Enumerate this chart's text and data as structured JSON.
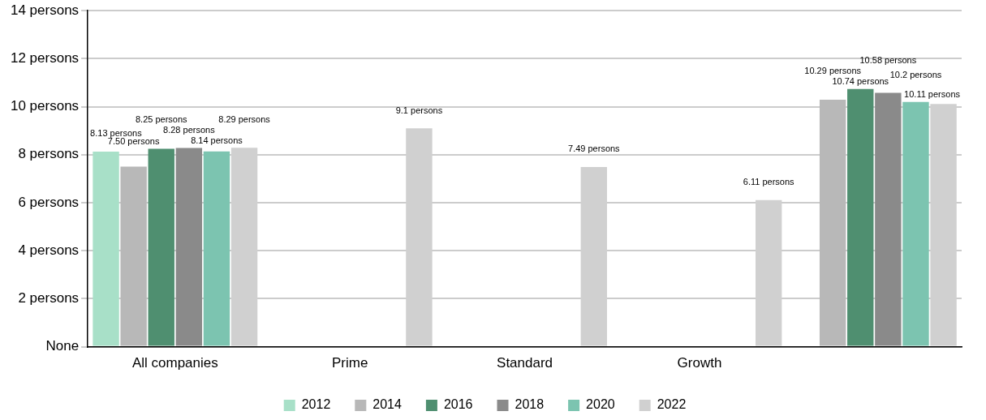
{
  "chart_data": {
    "type": "bar",
    "categories": [
      "All companies",
      "Prime",
      "Standard",
      "Growth",
      null
    ],
    "series": [
      {
        "name": "2012",
        "color": "#a8e0c8",
        "values": [
          8.13,
          null,
          null,
          null,
          null
        ],
        "value_labels": [
          "8.13 persons",
          null,
          null,
          null,
          null
        ]
      },
      {
        "name": "2014",
        "color": "#b8b8b8",
        "values": [
          7.5,
          null,
          null,
          null,
          10.29
        ],
        "value_labels": [
          "7.50 persons",
          null,
          null,
          null,
          "10.29 persons"
        ]
      },
      {
        "name": "2016",
        "color": "#4f8f70",
        "values": [
          8.25,
          null,
          null,
          null,
          10.74
        ],
        "value_labels": [
          "8.25 persons",
          null,
          null,
          null,
          "10.74 persons"
        ]
      },
      {
        "name": "2018",
        "color": "#8a8a8a",
        "values": [
          8.28,
          null,
          null,
          null,
          10.58
        ],
        "value_labels": [
          "8.28 persons",
          null,
          null,
          null,
          "10.58 persons"
        ]
      },
      {
        "name": "2020",
        "color": "#7cc4b0",
        "values": [
          8.14,
          null,
          null,
          null,
          10.2
        ],
        "value_labels": [
          "8.14 persons",
          null,
          null,
          null,
          "10.2 persons"
        ]
      },
      {
        "name": "2022",
        "color": "#d0d0d0",
        "values": [
          8.29,
          9.1,
          7.49,
          6.11,
          10.11
        ],
        "value_labels": [
          "8.29 persons",
          "9.1 persons",
          "7.49 persons",
          "6.11 persons",
          "10.11 persons"
        ]
      }
    ],
    "ylim": [
      0,
      14
    ],
    "yticks": [
      {
        "value": 0,
        "label": "None"
      },
      {
        "value": 2,
        "label": "2 persons"
      },
      {
        "value": 4,
        "label": "4 persons"
      },
      {
        "value": 6,
        "label": "6 persons"
      },
      {
        "value": 8,
        "label": "8 persons"
      },
      {
        "value": 10,
        "label": "10 persons"
      },
      {
        "value": 12,
        "label": "12 persons"
      },
      {
        "value": 14,
        "label": "14 persons"
      }
    ],
    "grid": "y",
    "legend": "bottom"
  }
}
